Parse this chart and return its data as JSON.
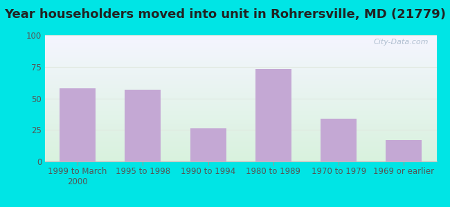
{
  "categories": [
    "1999 to March\n2000",
    "1995 to 1998",
    "1990 to 1994",
    "1980 to 1989",
    "1970 to 1979",
    "1969 or earlier"
  ],
  "values": [
    58,
    57,
    26,
    73,
    34,
    17
  ],
  "bar_color": "#c4a8d4",
  "title": "Year householders moved into unit in Rohrersville, MD (21779)",
  "ylim": [
    0,
    100
  ],
  "yticks": [
    0,
    25,
    50,
    75,
    100
  ],
  "background_color": "#00e5e5",
  "plot_bg_top_left": "#f0f0ff",
  "plot_bg_bottom_right": "#d8f0dc",
  "grid_color": "#e0e8e0",
  "title_fontsize": 13,
  "tick_fontsize": 8.5,
  "watermark": "City-Data.com",
  "watermark_color": "#aabbcc",
  "bar_width": 0.55
}
